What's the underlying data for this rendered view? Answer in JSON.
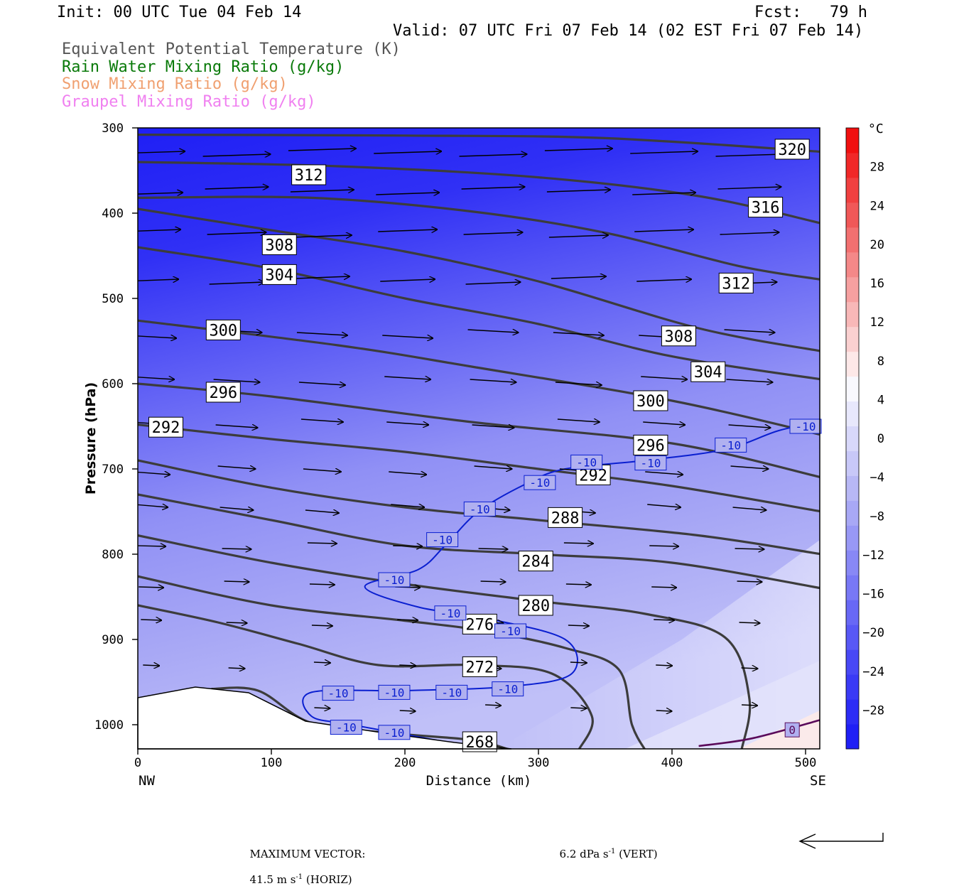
{
  "header": {
    "init": "Init: 00 UTC Tue 04 Feb 14",
    "fcst": "Fcst:   79 h",
    "valid": "Valid: 07 UTC Fri 07 Feb 14 (02 EST Fri 07 Feb 14)"
  },
  "legend": [
    {
      "label": "Equivalent Potential Temperature (K)",
      "color": "#555555"
    },
    {
      "label": "Rain Water Mixing Ratio (g/kg)",
      "color": "#0a7a0a"
    },
    {
      "label": "Snow Mixing Ratio (g/kg)",
      "color": "#f0a070"
    },
    {
      "label": "Graupel Mixing Ratio (g/kg)",
      "color": "#f080f0"
    }
  ],
  "chart_data": {
    "type": "contour cross-section",
    "xlabel": "Distance (km)",
    "ylabel": "Pressure (hPa)",
    "x_end_labels": {
      "left": "NW",
      "right": "SE"
    },
    "x_ticks": [
      0,
      100,
      200,
      300,
      400,
      500
    ],
    "y_ticks": [
      300,
      400,
      500,
      600,
      700,
      800,
      900,
      1000
    ],
    "xlim": [
      0,
      512
    ],
    "ylim": [
      1030,
      300
    ],
    "y_scale": "log",
    "colorbar": {
      "unit": "°C",
      "ticks": [
        28,
        24,
        20,
        16,
        12,
        8,
        4,
        0,
        -4,
        -8,
        -12,
        -16,
        -20,
        -24,
        -28
      ],
      "colors": [
        "#1f1ff5",
        "#2c2cf5",
        "#3a3af5",
        "#4848f5",
        "#5858f5",
        "#6868f5",
        "#7878f5",
        "#8888f5",
        "#9898f5",
        "#a8a8f5",
        "#b8b8f5",
        "#c8c8f8",
        "#d8d8fa",
        "#e8e8fc",
        "#f8f8fe",
        "#fde8e8",
        "#fad0d0",
        "#f8b8b8",
        "#f6a0a0",
        "#f48888",
        "#f27070",
        "#f05858",
        "#f04040",
        "#f02828",
        "#f01010"
      ]
    },
    "theta_e_contours": [
      {
        "level": 320,
        "points": [
          [
            0,
            308
          ],
          [
            200,
            309
          ],
          [
            350,
            312
          ],
          [
            512,
            328
          ]
        ],
        "labels": [
          [
            "320",
            490,
            325
          ]
        ]
      },
      {
        "level": 316,
        "points": [
          [
            0,
            340
          ],
          [
            150,
            345
          ],
          [
            300,
            358
          ],
          [
            420,
            380
          ],
          [
            512,
            412
          ]
        ],
        "labels": [
          [
            "316",
            470,
            393
          ]
        ]
      },
      {
        "level": 312,
        "points": [
          [
            0,
            382
          ],
          [
            130,
            382
          ],
          [
            250,
            398
          ],
          [
            350,
            423
          ],
          [
            450,
            462
          ],
          [
            512,
            478
          ]
        ],
        "labels": [
          [
            "312",
            128,
            355
          ],
          [
            "312",
            448,
            482
          ]
        ]
      },
      {
        "level": 308,
        "points": [
          [
            0,
            395
          ],
          [
            100,
            420
          ],
          [
            200,
            445
          ],
          [
            300,
            480
          ],
          [
            420,
            535
          ],
          [
            512,
            562
          ]
        ],
        "labels": [
          [
            "308",
            106,
            437
          ],
          [
            "308",
            405,
            544
          ]
        ]
      },
      {
        "level": 304,
        "points": [
          [
            0,
            440
          ],
          [
            100,
            465
          ],
          [
            200,
            500
          ],
          [
            300,
            530
          ],
          [
            400,
            568
          ],
          [
            512,
            595
          ]
        ],
        "labels": [
          [
            "304",
            106,
            472
          ],
          [
            "304",
            427,
            586
          ]
        ]
      },
      {
        "level": 300,
        "points": [
          [
            0,
            526
          ],
          [
            150,
            555
          ],
          [
            250,
            580
          ],
          [
            400,
            620
          ],
          [
            512,
            660
          ]
        ],
        "labels": [
          [
            "300",
            64,
            537
          ],
          [
            "300",
            384,
            620
          ]
        ]
      },
      {
        "level": 296,
        "points": [
          [
            0,
            600
          ],
          [
            100,
            615
          ],
          [
            250,
            645
          ],
          [
            400,
            670
          ],
          [
            512,
            710
          ]
        ],
        "labels": [
          [
            "296",
            64,
            610
          ],
          [
            "296",
            384,
            672
          ]
        ]
      },
      {
        "level": 292,
        "points": [
          [
            0,
            648
          ],
          [
            100,
            665
          ],
          [
            200,
            680
          ],
          [
            300,
            700
          ],
          [
            400,
            720
          ],
          [
            512,
            750
          ]
        ],
        "labels": [
          [
            "292",
            21,
            651
          ],
          [
            "292",
            341,
            707
          ]
        ]
      },
      {
        "level": 288,
        "points": [
          [
            0,
            690
          ],
          [
            100,
            722
          ],
          [
            200,
            745
          ],
          [
            300,
            760
          ],
          [
            420,
            778
          ],
          [
            512,
            800
          ]
        ],
        "labels": [
          [
            "288",
            320,
            757
          ]
        ]
      },
      {
        "level": 284,
        "points": [
          [
            0,
            730
          ],
          [
            100,
            760
          ],
          [
            200,
            790
          ],
          [
            300,
            800
          ],
          [
            400,
            810
          ],
          [
            512,
            840
          ]
        ],
        "labels": [
          [
            "284",
            298,
            808
          ]
        ]
      },
      {
        "level": 280,
        "points": [
          [
            0,
            778
          ],
          [
            100,
            810
          ],
          [
            200,
            835
          ],
          [
            300,
            855
          ],
          [
            380,
            870
          ],
          [
            440,
            898
          ],
          [
            458,
            970
          ],
          [
            452,
            1030
          ]
        ],
        "labels": [
          [
            "280",
            298,
            860
          ]
        ]
      },
      {
        "level": 276,
        "points": [
          [
            0,
            826
          ],
          [
            100,
            860
          ],
          [
            200,
            878
          ],
          [
            260,
            890
          ],
          [
            320,
            910
          ],
          [
            360,
            935
          ],
          [
            370,
            1000
          ],
          [
            380,
            1030
          ]
        ],
        "labels": [
          [
            "276",
            256,
            882
          ]
        ]
      },
      {
        "level": 272,
        "points": [
          [
            0,
            860
          ],
          [
            60,
            880
          ],
          [
            120,
            905
          ],
          [
            180,
            930
          ],
          [
            250,
            930
          ],
          [
            310,
            940
          ],
          [
            340,
            990
          ],
          [
            330,
            1030
          ]
        ],
        "labels": [
          [
            "272",
            256,
            932
          ]
        ]
      },
      {
        "level": 268,
        "points": [
          [
            55,
            958
          ],
          [
            90,
            960
          ],
          [
            130,
            998
          ],
          [
            190,
            1010
          ],
          [
            250,
            1018
          ],
          [
            280,
            1030
          ]
        ],
        "labels": [
          [
            "268",
            256,
            1020
          ]
        ]
      }
    ],
    "temperature_contours": [
      {
        "level": -10,
        "color": "#0a1fd0",
        "points": [
          [
            512,
            645
          ],
          [
            480,
            655
          ],
          [
            440,
            677
          ],
          [
            380,
            690
          ],
          [
            320,
            700
          ],
          [
            290,
            718
          ],
          [
            255,
            750
          ],
          [
            230,
            790
          ],
          [
            210,
            818
          ],
          [
            170,
            838
          ],
          [
            210,
            862
          ],
          [
            260,
            875
          ],
          [
            320,
            900
          ],
          [
            325,
            940
          ],
          [
            280,
            955
          ],
          [
            200,
            960
          ],
          [
            130,
            962
          ],
          [
            130,
            990
          ],
          [
            160,
            1000
          ],
          [
            230,
            1020
          ],
          [
            255,
            1028
          ]
        ],
        "labels": [
          [
            "-10",
            500,
            650
          ],
          [
            "-10",
            444,
            672
          ],
          [
            "-10",
            384,
            693
          ],
          [
            "-10",
            336,
            692
          ],
          [
            "-10",
            301,
            716
          ],
          [
            "-10",
            256,
            747
          ],
          [
            "-10",
            228,
            783
          ],
          [
            "-10",
            192,
            830
          ],
          [
            "-10",
            234,
            869
          ],
          [
            "-10",
            279,
            890
          ],
          [
            "-10",
            277,
            958
          ],
          [
            "-10",
            192,
            962
          ],
          [
            "-10",
            235,
            962
          ],
          [
            "-10",
            150,
            963
          ],
          [
            "-10",
            156,
            1003
          ],
          [
            "-10",
            192,
            1009
          ]
        ]
      },
      {
        "level": 0,
        "color": "#5a0a5a",
        "points": [
          [
            420,
            1025
          ],
          [
            460,
            1016
          ],
          [
            512,
            994
          ]
        ],
        "labels": [
          [
            "0",
            490,
            1006
          ]
        ]
      }
    ],
    "wind_vectors_note": "Arrows show wind; maximum vector in footer"
  },
  "footer": {
    "max_vector_label": "MAXIMUM VECTOR:",
    "horiz": "41.5 m s",
    "horiz_exp": "-1",
    "horiz_unit": " (HORIZ)",
    "vert": "6.2 dPa s",
    "vert_exp": "-1",
    "vert_unit": " (VERT)"
  }
}
